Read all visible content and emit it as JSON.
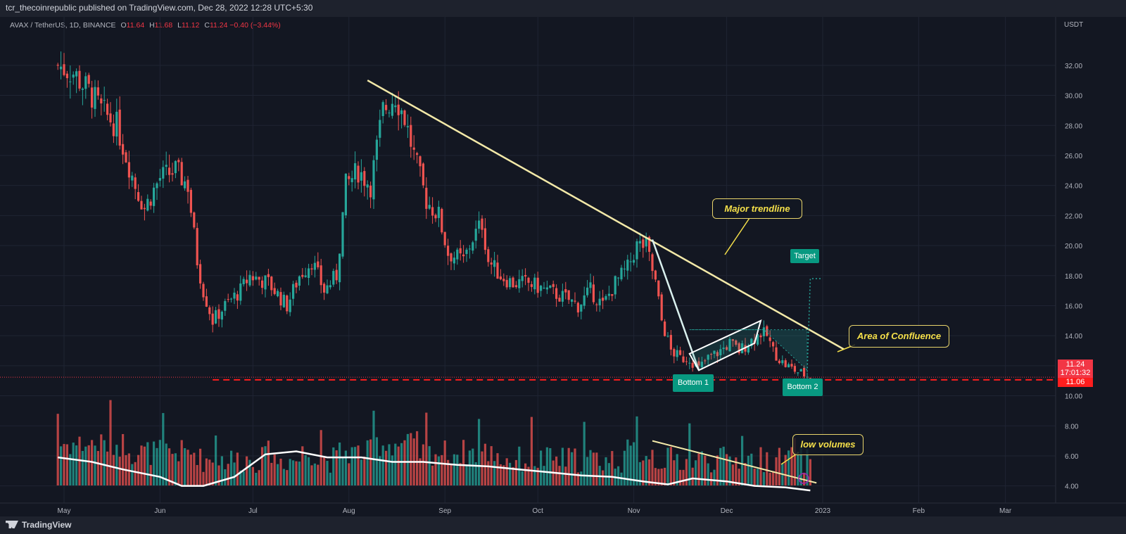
{
  "header": {
    "publish_line": "tcr_thecoinrepublic published on TradingView.com, Dec 28, 2022 12:28 UTC+5:30"
  },
  "legend": {
    "symbol": "AVAX / TetherUS, 1D, BINANCE",
    "o_label": "O",
    "o": "11.64",
    "h_label": "H",
    "h": "11.68",
    "l_label": "L",
    "l": "11.12",
    "c_label": "C",
    "c": "11.24",
    "change": "−0.40 (−3.44%)"
  },
  "axis": {
    "currency": "USDT"
  },
  "price_boxes": {
    "last": "11.24",
    "countdown": "17:01:32",
    "support": "11.06"
  },
  "annotations": {
    "major_trendline": "Major trendline",
    "area_of_confluence": "Area of Confluence",
    "low_volumes": "low volumes",
    "bottom1": "Bottom 1",
    "bottom2": "Bottom 2",
    "target": "Target"
  },
  "footer": {
    "brand": "TradingView"
  },
  "colors": {
    "up": "#26a69a",
    "down": "#ef5350",
    "bg": "#131722",
    "trendline": "#f3e9a8",
    "support": "#ff1e1e",
    "callout": "#f5e04a"
  },
  "chart_data": {
    "type": "candlestick",
    "symbol": "AVAX / TetherUS",
    "interval": "1D",
    "ylabel": "USDT",
    "y_ticks": [
      4,
      6,
      8,
      10,
      12,
      14,
      16,
      18,
      20,
      22,
      24,
      26,
      28,
      30,
      32
    ],
    "x_ticks": [
      "May",
      "Jun",
      "Jul",
      "Aug",
      "Sep",
      "Oct",
      "Nov",
      "Dec",
      "2023",
      "Feb",
      "Mar"
    ],
    "grid": true,
    "series": [
      {
        "name": "price_close_points",
        "x": [
          "2022-04-29",
          "2022-05-04",
          "2022-05-10",
          "2022-05-13",
          "2022-05-18",
          "2022-05-24",
          "2022-05-27",
          "2022-06-01",
          "2022-06-06",
          "2022-06-10",
          "2022-06-13",
          "2022-06-15",
          "2022-06-18",
          "2022-06-22",
          "2022-06-27",
          "2022-06-30",
          "2022-07-06",
          "2022-07-12",
          "2022-07-16",
          "2022-07-20",
          "2022-07-24",
          "2022-07-28",
          "2022-07-31",
          "2022-08-04",
          "2022-08-08",
          "2022-08-12",
          "2022-08-16",
          "2022-08-19",
          "2022-08-22",
          "2022-08-26",
          "2022-08-30",
          "2022-09-02",
          "2022-09-07",
          "2022-09-10",
          "2022-09-13",
          "2022-09-15",
          "2022-09-19",
          "2022-09-23",
          "2022-09-28",
          "2022-10-04",
          "2022-10-10",
          "2022-10-14",
          "2022-10-18",
          "2022-10-22",
          "2022-10-26",
          "2022-10-30",
          "2022-11-02",
          "2022-11-05",
          "2022-11-08",
          "2022-11-10",
          "2022-11-13",
          "2022-11-16",
          "2022-11-19",
          "2022-11-22",
          "2022-11-25",
          "2022-11-29",
          "2022-12-02",
          "2022-12-05",
          "2022-12-09",
          "2022-12-12",
          "2022-12-14",
          "2022-12-16",
          "2022-12-19",
          "2022-12-22",
          "2022-12-25",
          "2022-12-28"
        ],
        "values": [
          32.0,
          31.5,
          30.0,
          29.0,
          28.0,
          24.0,
          22.5,
          24.5,
          25.0,
          24.0,
          19.0,
          17.0,
          15.0,
          16.0,
          17.0,
          18.0,
          17.5,
          16.0,
          18.0,
          19.0,
          17.0,
          18.0,
          24.0,
          25.0,
          24.0,
          29.0,
          30.0,
          28.5,
          26.0,
          23.0,
          22.0,
          19.5,
          19.0,
          20.5,
          21.5,
          19.0,
          18.0,
          17.5,
          17.5,
          17.0,
          16.5,
          16.0,
          17.0,
          16.0,
          17.5,
          18.5,
          20.0,
          20.0,
          17.5,
          15.0,
          13.0,
          12.5,
          12.5,
          11.8,
          12.5,
          13.0,
          13.5,
          13.0,
          13.7,
          14.2,
          14.0,
          13.0,
          12.2,
          11.8,
          11.5,
          11.24
        ]
      },
      {
        "name": "volume_ma_points",
        "x": [
          "2022-04-29",
          "2022-05-10",
          "2022-05-20",
          "2022-06-01",
          "2022-06-08",
          "2022-06-15",
          "2022-06-25",
          "2022-07-05",
          "2022-07-15",
          "2022-07-25",
          "2022-08-05",
          "2022-08-15",
          "2022-08-25",
          "2022-09-05",
          "2022-09-15",
          "2022-09-25",
          "2022-10-05",
          "2022-10-15",
          "2022-10-25",
          "2022-11-04",
          "2022-11-12",
          "2022-11-20",
          "2022-12-01",
          "2022-12-10",
          "2022-12-20",
          "2022-12-28"
        ],
        "values": [
          5.9,
          5.6,
          5.1,
          4.6,
          4.0,
          4.0,
          4.6,
          6.1,
          6.3,
          5.9,
          5.9,
          5.6,
          5.6,
          5.4,
          5.3,
          5.1,
          4.9,
          4.7,
          4.6,
          4.3,
          4.1,
          4.5,
          4.3,
          4.0,
          3.9,
          3.7
        ]
      }
    ],
    "last_price": 11.24,
    "support_level": 11.06
  }
}
